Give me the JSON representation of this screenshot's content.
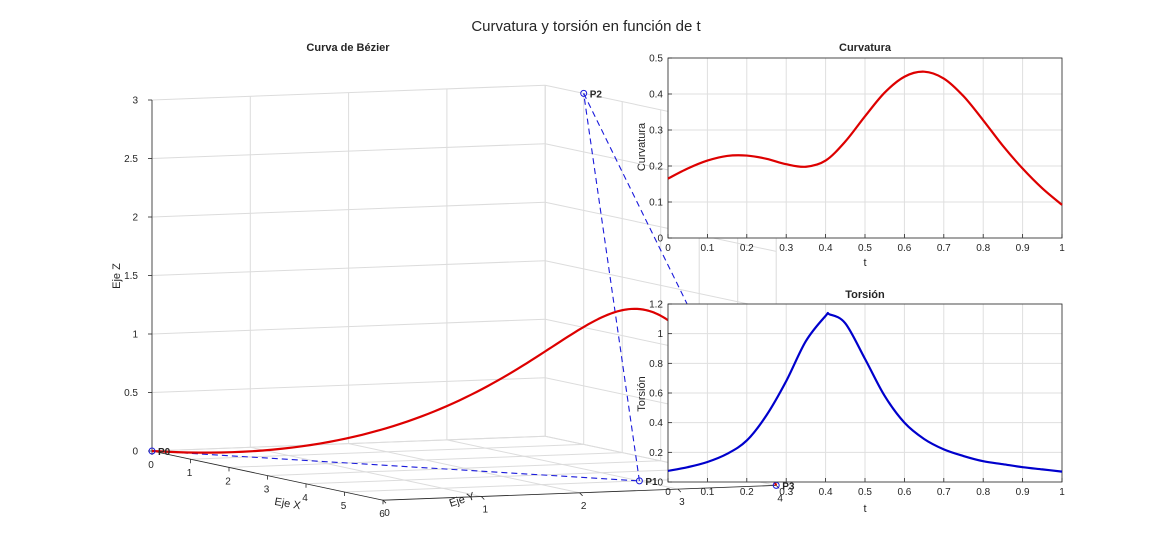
{
  "figure": {
    "suptitle": "Curvatura y torsión en función de t"
  },
  "chart_data": [
    {
      "type": "line",
      "projection": "3d",
      "title": "Curva de Bézier",
      "xlabel": "Eje X",
      "ylabel": "Eje Y",
      "zlabel": "Eje Z",
      "xlim": [
        0,
        6
      ],
      "ylim": [
        0,
        4
      ],
      "zlim": [
        0,
        3
      ],
      "xticks": [
        0,
        1,
        2,
        3,
        4,
        5,
        6
      ],
      "yticks": [
        0,
        1,
        2,
        3,
        4
      ],
      "zticks": [
        0,
        0.5,
        1,
        1.5,
        2,
        2.5,
        3
      ],
      "xtick_labels": [
        "0",
        "1",
        "2",
        "3",
        "4",
        "5",
        "6"
      ],
      "ytick_labels": [
        "0",
        "1",
        "2",
        "3",
        "4"
      ],
      "ztick_labels": [
        "0",
        "0.5",
        "1",
        "1.5",
        "2",
        "2.5",
        "3"
      ],
      "grid": true,
      "control_points": [
        {
          "label": "P0",
          "x": 0,
          "y": 0,
          "z": 0
        },
        {
          "label": "P1",
          "x": 5,
          "y": 3,
          "z": 0
        },
        {
          "label": "P2",
          "x": 1,
          "y": 4,
          "z": 3
        },
        {
          "label": "P3",
          "x": 6,
          "y": 4,
          "z": 0
        }
      ],
      "colors": {
        "curve": "#dd0000",
        "polygon": "#1a1adb"
      }
    },
    {
      "type": "line",
      "title": "Curvatura",
      "xlabel": "t",
      "ylabel": "Curvatura",
      "xlim": [
        0,
        1
      ],
      "ylim": [
        0,
        0.5
      ],
      "xticks": [
        0,
        0.1,
        0.2,
        0.3,
        0.4,
        0.5,
        0.6,
        0.7,
        0.8,
        0.9,
        1
      ],
      "xtick_labels": [
        "0",
        "0.1",
        "0.2",
        "0.3",
        "0.4",
        "0.5",
        "0.6",
        "0.7",
        "0.8",
        "0.9",
        "1"
      ],
      "yticks": [
        0,
        0.1,
        0.2,
        0.3,
        0.4,
        0.5
      ],
      "ytick_labels": [
        "0",
        "0.1",
        "0.2",
        "0.3",
        "0.4",
        "0.5"
      ],
      "grid": true,
      "color": "#dd0000",
      "x": [
        0,
        0.05,
        0.1,
        0.15,
        0.2,
        0.25,
        0.3,
        0.35,
        0.4,
        0.45,
        0.5,
        0.55,
        0.6,
        0.65,
        0.7,
        0.75,
        0.8,
        0.85,
        0.9,
        0.95,
        1
      ],
      "y": [
        0.165,
        0.193,
        0.215,
        0.228,
        0.229,
        0.22,
        0.205,
        0.198,
        0.215,
        0.268,
        0.338,
        0.404,
        0.448,
        0.462,
        0.443,
        0.394,
        0.327,
        0.256,
        0.193,
        0.138,
        0.092
      ]
    },
    {
      "type": "line",
      "title": "Torsión",
      "xlabel": "t",
      "ylabel": "Torsión",
      "xlim": [
        0,
        1
      ],
      "ylim": [
        0,
        1.2
      ],
      "xticks": [
        0,
        0.1,
        0.2,
        0.3,
        0.4,
        0.5,
        0.6,
        0.7,
        0.8,
        0.9,
        1
      ],
      "xtick_labels": [
        "0",
        "0.1",
        "0.2",
        "0.3",
        "0.4",
        "0.5",
        "0.6",
        "0.7",
        "0.8",
        "0.9",
        "1"
      ],
      "yticks": [
        0,
        0.2,
        0.4,
        0.6,
        0.8,
        1,
        1.2
      ],
      "ytick_labels": [
        "0",
        "0.2",
        "0.4",
        "0.6",
        "0.8",
        "1",
        "1.2"
      ],
      "grid": true,
      "color": "#0000cc",
      "x": [
        0,
        0.05,
        0.1,
        0.15,
        0.2,
        0.25,
        0.3,
        0.35,
        0.4,
        0.41,
        0.45,
        0.5,
        0.55,
        0.6,
        0.65,
        0.7,
        0.75,
        0.8,
        0.85,
        0.9,
        0.95,
        1
      ],
      "y": [
        0.075,
        0.1,
        0.135,
        0.19,
        0.28,
        0.45,
        0.68,
        0.95,
        1.12,
        1.13,
        1.07,
        0.83,
        0.58,
        0.4,
        0.29,
        0.22,
        0.175,
        0.14,
        0.12,
        0.1,
        0.085,
        0.07
      ]
    }
  ]
}
